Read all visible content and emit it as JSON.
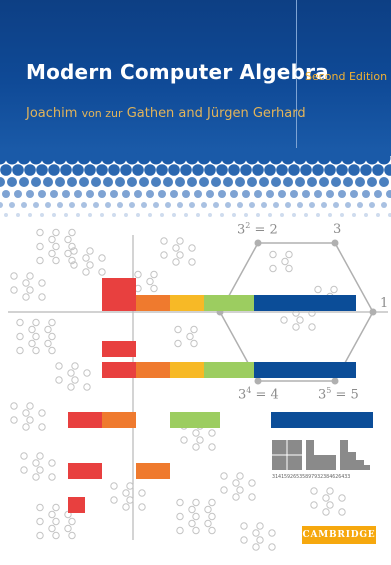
{
  "cover": {
    "title": "Modern Computer Algebra",
    "edition": "Second Edition",
    "authors_first": "Joachim",
    "authors_particle": "von zur",
    "authors_rest": "Gathen and Jürgen Gerhard",
    "publisher": "CAMBRIDGE"
  },
  "math": {
    "eq1_base": "3",
    "eq1_exp": "2",
    "eq1_rhs": "= 2",
    "label_3": "3",
    "label_1": "1",
    "eq2_base": "3",
    "eq2_exp": "4",
    "eq2_rhs": "= 4",
    "eq3_base": "3",
    "eq3_exp": "5",
    "eq3_rhs": "= 5",
    "digits": "31415926535897932384626433"
  },
  "colors": {
    "navy": "#0f4a97",
    "red": "#e8403f",
    "orange": "#ef7a2e",
    "yellow": "#f7b926",
    "green": "#9ccd60",
    "blue": "#0b4d98",
    "gold": "#f6a80e"
  }
}
